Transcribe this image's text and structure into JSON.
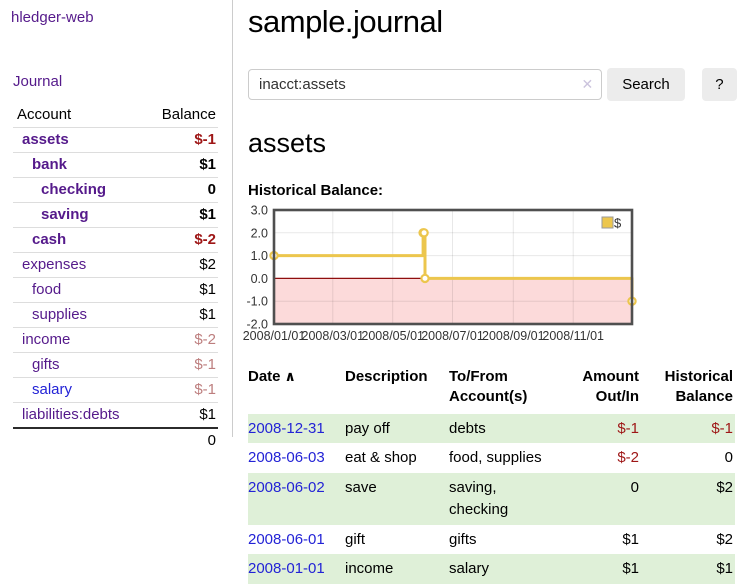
{
  "colors": {
    "purple-link": "#551a8b",
    "blue-link": "#2323d6",
    "neg-strong": "#9e1616",
    "neg-soft": "#bd7e7e",
    "row-green": "#dff0d8",
    "button-bg": "#ececec",
    "input-border": "#cccccc",
    "clear-x": "#cbc3dd"
  },
  "sidebar": {
    "brand": "hledger-web",
    "nav": {
      "journal": "Journal"
    },
    "accounts": {
      "col_account": "Account",
      "col_balance": "Balance",
      "rows": [
        {
          "name": "assets",
          "balance": "$-1",
          "tone": "neg-strong"
        },
        {
          "name": "bank",
          "balance": "$1",
          "tone": ""
        },
        {
          "name": "checking",
          "balance": "0",
          "tone": ""
        },
        {
          "name": "saving",
          "balance": "$1",
          "tone": ""
        },
        {
          "name": "cash",
          "balance": "$-2",
          "tone": "neg-strong"
        },
        {
          "name": "expenses",
          "balance": "$2",
          "tone": ""
        },
        {
          "name": "food",
          "balance": "$1",
          "tone": ""
        },
        {
          "name": "supplies",
          "balance": "$1",
          "tone": ""
        },
        {
          "name": "income",
          "balance": "$-2",
          "tone": "neg-soft"
        },
        {
          "name": "gifts",
          "balance": "$-1",
          "tone": "neg-soft"
        },
        {
          "name": "salary",
          "balance": "$-1",
          "tone": "neg-soft"
        },
        {
          "name": "liabilities:debts",
          "balance": "$1",
          "tone": ""
        }
      ],
      "total": "0"
    }
  },
  "main": {
    "title": "sample.journal",
    "search": {
      "value": "inacct:assets",
      "clear_icon": "✕",
      "button_label": "Search",
      "help_label": "?"
    },
    "account_heading": "assets",
    "register": {
      "headers": {
        "date": "Date",
        "sort_icon": "∧",
        "description": "Description",
        "accounts": "To/From Account(s)",
        "amount": "Amount Out/In",
        "balance": "Historical Balance"
      },
      "rows": [
        {
          "date": "2008-12-31",
          "description": "pay off",
          "accounts": "debts",
          "amount": "$-1",
          "balance": "$-1",
          "amount_tone": "neg-strong",
          "balance_tone": "neg-strong"
        },
        {
          "date": "2008-06-03",
          "description": "eat & shop",
          "accounts": "food, supplies",
          "amount": "$-2",
          "balance": "0",
          "amount_tone": "neg-strong",
          "balance_tone": ""
        },
        {
          "date": "2008-06-02",
          "description": "save",
          "accounts": "saving, checking",
          "amount": "0",
          "balance": "$2",
          "amount_tone": "",
          "balance_tone": ""
        },
        {
          "date": "2008-06-01",
          "description": "gift",
          "accounts": "gifts",
          "amount": "$1",
          "balance": "$2",
          "amount_tone": "",
          "balance_tone": ""
        },
        {
          "date": "2008-01-01",
          "description": "income",
          "accounts": "salary",
          "amount": "$1",
          "balance": "$1",
          "amount_tone": "",
          "balance_tone": ""
        }
      ]
    }
  },
  "chart_data": {
    "type": "line",
    "title": "Historical Balance:",
    "step": true,
    "x_domain": [
      "2008-01-01",
      "2008-12-31"
    ],
    "ylim": [
      -2,
      3
    ],
    "yticks": [
      3,
      2,
      1,
      0,
      -1,
      -2
    ],
    "xticks": [
      "2008/01/01",
      "2008/03/01",
      "2008/05/01",
      "2008/07/01",
      "2008/09/01",
      "2008/11/01"
    ],
    "series": [
      {
        "name": "$",
        "points": [
          [
            "2008-01-01",
            1
          ],
          [
            "2008-06-01",
            2
          ],
          [
            "2008-06-02",
            2
          ],
          [
            "2008-06-03",
            0
          ],
          [
            "2008-12-31",
            -1
          ]
        ]
      }
    ],
    "legend_position": "top-right",
    "grid": true,
    "line_color": "#ecc64d",
    "negative_region_color": "#fcdada",
    "zero_line_color": "#8f0e0e",
    "border_color": "#4f4f4f"
  }
}
